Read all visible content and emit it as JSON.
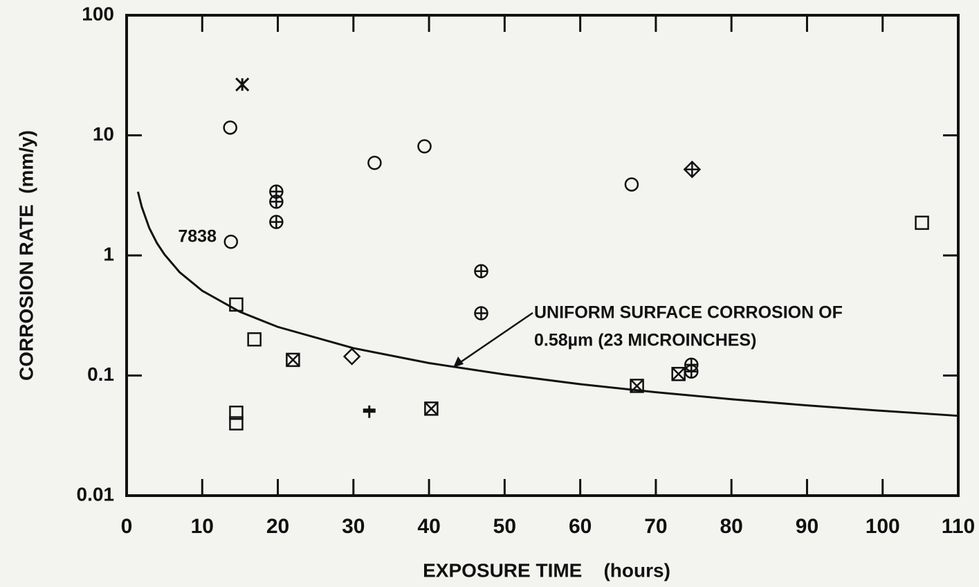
{
  "chart_data": {
    "type": "scatter",
    "xlabel": "EXPOSURE TIME    (hours)",
    "ylabel": "CORROSION RATE  (mm/y)",
    "xlim": [
      0,
      110
    ],
    "xticks": [
      0,
      10,
      20,
      30,
      40,
      50,
      60,
      70,
      80,
      90,
      100,
      110
    ],
    "ylim": [
      0.01,
      100
    ],
    "yticks": [
      0.01,
      0.1,
      1,
      10,
      100
    ],
    "log_y": true,
    "grid": false,
    "color": "#111111",
    "annotations": [
      "7838",
      "UNIFORM SURFACE CORROSION OF",
      "0.58µm (23 MICROINCHES)"
    ],
    "series": [
      {
        "marker": "circle",
        "x": [
          13.7,
          13.8,
          32.8,
          39.4,
          66.8
        ],
        "values": [
          11.6,
          1.3,
          5.9,
          8.1,
          3.9
        ]
      },
      {
        "marker": "circle-plus",
        "x": [
          19.8,
          19.8,
          19.8,
          46.9,
          46.9,
          74.7,
          74.7
        ],
        "values": [
          3.4,
          2.8,
          1.9,
          0.74,
          0.33,
          0.123,
          0.108
        ]
      },
      {
        "marker": "square",
        "x": [
          14.5,
          16.9,
          14.5,
          14.5,
          105.2
        ],
        "values": [
          0.39,
          0.2,
          0.049,
          0.04,
          1.87
        ]
      },
      {
        "marker": "square-x",
        "x": [
          22.0,
          40.3,
          67.5,
          73.0
        ],
        "values": [
          0.135,
          0.053,
          0.082,
          0.103
        ]
      },
      {
        "marker": "diamond",
        "x": [
          29.8
        ],
        "values": [
          0.144
        ]
      },
      {
        "marker": "diamond-plus",
        "x": [
          74.8
        ],
        "values": [
          5.2
        ]
      },
      {
        "marker": "asterisk",
        "x": [
          15.3
        ],
        "values": [
          26.5
        ]
      },
      {
        "marker": "plus",
        "x": [
          32.1
        ],
        "values": [
          0.05
        ]
      },
      {
        "marker": "line",
        "x": [
          1.5,
          2,
          3,
          4,
          5,
          7,
          10,
          15,
          20,
          30,
          40,
          50,
          60,
          70,
          80,
          90,
          100,
          110
        ],
        "values": [
          3.39,
          2.54,
          1.69,
          1.27,
          1.02,
          0.726,
          0.508,
          0.339,
          0.254,
          0.169,
          0.127,
          0.102,
          0.0847,
          0.0726,
          0.0635,
          0.0564,
          0.0508,
          0.0462
        ]
      }
    ]
  }
}
